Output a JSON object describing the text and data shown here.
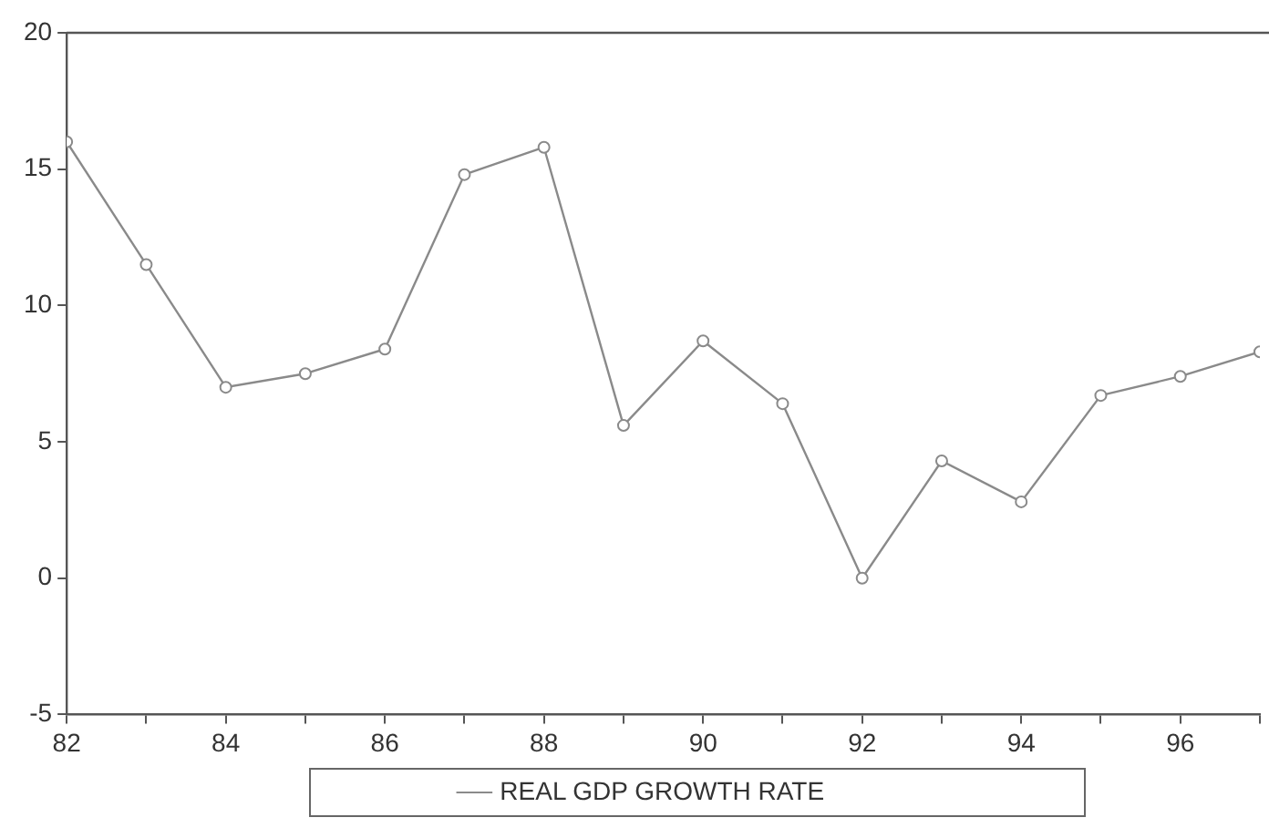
{
  "chart_data": {
    "type": "line",
    "x": [
      82,
      83,
      84,
      85,
      86,
      87,
      88,
      89,
      90,
      91,
      92,
      93,
      94,
      95,
      96,
      97
    ],
    "series": [
      {
        "name": "REAL GDP GROWTH RATE",
        "color": "#8a8a8a",
        "values": [
          16.0,
          11.5,
          7.0,
          7.5,
          8.4,
          14.8,
          15.8,
          5.6,
          8.7,
          6.4,
          0.0,
          4.3,
          2.8,
          6.7,
          7.4,
          8.3
        ]
      }
    ],
    "xlim": [
      82,
      97
    ],
    "xticks": [
      82,
      {
        "value": 83,
        "label": null
      },
      84,
      {
        "value": 85,
        "label": null
      },
      86,
      {
        "value": 87,
        "label": null
      },
      88,
      {
        "value": 89,
        "label": null
      },
      90,
      {
        "value": 91,
        "label": null
      },
      92,
      {
        "value": 93,
        "label": null
      },
      94,
      {
        "value": 95,
        "label": null
      },
      96,
      {
        "value": 97,
        "label": null
      }
    ],
    "ylim": [
      -5,
      20
    ],
    "yticks": [
      -5,
      0,
      5,
      10,
      15,
      20
    ],
    "grid": false,
    "legend": "bottom",
    "marker": "circle",
    "line_style": "solid"
  }
}
